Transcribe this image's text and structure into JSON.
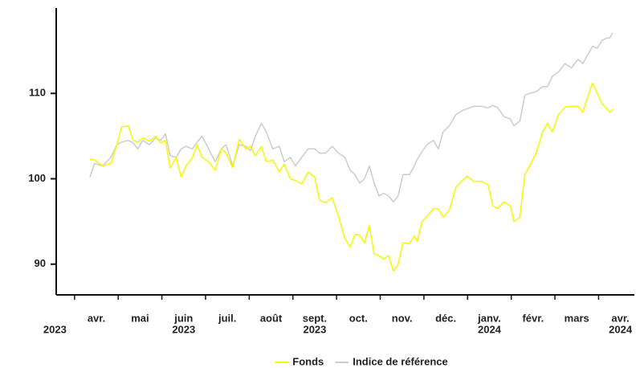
{
  "chart_data": {
    "type": "line",
    "x": [
      0.35,
      0.46,
      0.64,
      0.83,
      0.97,
      1.08,
      1.23,
      1.34,
      1.45,
      1.56,
      1.71,
      1.86,
      1.97,
      2.08,
      2.19,
      2.33,
      2.44,
      2.55,
      2.7,
      2.81,
      2.92,
      3.07,
      3.22,
      3.36,
      3.47,
      3.62,
      3.77,
      3.92,
      4.03,
      4.14,
      4.28,
      4.39,
      4.54,
      4.69,
      4.8,
      4.94,
      5.06,
      5.2,
      5.35,
      5.5,
      5.61,
      5.75,
      5.9,
      6.05,
      6.19,
      6.31,
      6.42,
      6.53,
      6.64,
      6.75,
      6.86,
      6.97,
      7.08,
      7.19,
      7.3,
      7.41,
      7.52,
      7.67,
      7.78,
      7.85,
      7.96,
      8.07,
      8.22,
      8.33,
      8.44,
      8.58,
      8.73,
      8.88,
      8.99,
      9.14,
      9.32,
      9.47,
      9.58,
      9.69,
      9.83,
      9.98,
      10.06,
      10.2,
      10.31,
      10.42,
      10.57,
      10.72,
      10.83,
      10.94,
      11.08,
      11.23,
      11.38,
      11.53,
      11.64,
      11.75,
      11.86,
      11.97,
      12.08,
      12.19,
      12.26,
      12.32
    ],
    "series": [
      {
        "name": "Fonds",
        "color": "#f7f700",
        "values": [
          102.3,
          102.2,
          101.5,
          101.8,
          104,
          106.1,
          106.2,
          104.5,
          104.3,
          104.8,
          104.4,
          105,
          104.2,
          104.5,
          101.3,
          102.5,
          100.2,
          101.5,
          102.5,
          104,
          102.5,
          102,
          101,
          103.5,
          103,
          101.3,
          104.6,
          103.5,
          103.8,
          102.7,
          103.8,
          102,
          102.2,
          100.8,
          101.7,
          100,
          99.8,
          99.4,
          100.8,
          100.2,
          97.5,
          97.2,
          97.8,
          95.5,
          93,
          92,
          93.5,
          93.4,
          92.5,
          94.5,
          91.2,
          91,
          90.6,
          91,
          89.2,
          90,
          92.5,
          92.4,
          93.3,
          92.7,
          95,
          95.6,
          96.5,
          96.5,
          95.5,
          96.3,
          99,
          99.8,
          100.3,
          99.7,
          99.7,
          99.3,
          96.8,
          96.5,
          97.3,
          96.8,
          95,
          95.5,
          100.5,
          101.5,
          103,
          105.5,
          106.5,
          105.5,
          107.5,
          108.4,
          108.5,
          108.5,
          107.8,
          109.6,
          111.2,
          110,
          108.8,
          108.2,
          107.8,
          108.1
        ]
      },
      {
        "name": "Indice de référence",
        "color": "#cccccc",
        "values": [
          100.2,
          101.8,
          101.5,
          102.5,
          104,
          104.3,
          104.5,
          104.2,
          103.5,
          104.5,
          104,
          104.8,
          104.5,
          105.3,
          102.7,
          102.5,
          103.5,
          103.8,
          103.5,
          104.3,
          105,
          103.5,
          102,
          103.5,
          104,
          101.5,
          104,
          103.8,
          103.3,
          105,
          106.5,
          105.5,
          103.5,
          103.8,
          102,
          102.5,
          101.5,
          102.5,
          103.5,
          103.5,
          103,
          103,
          103.8,
          103,
          102.5,
          101,
          100.5,
          99.5,
          100,
          101.5,
          99.5,
          98,
          98.3,
          98,
          97.3,
          98,
          100.5,
          100.5,
          101.5,
          102.3,
          103.2,
          104,
          104.5,
          103.5,
          105.5,
          106.2,
          107.5,
          108,
          108.2,
          108.5,
          108.5,
          108.3,
          108.6,
          108.3,
          107.3,
          107,
          106.2,
          106.8,
          109.8,
          110,
          110.2,
          110.8,
          110.8,
          112,
          112.5,
          113.5,
          113,
          114,
          113.5,
          114.5,
          115.5,
          115.3,
          116.2,
          116.5,
          116.5,
          117.1
        ]
      }
    ],
    "xlim": [
      -0.42,
      12.82
    ],
    "xticks": [
      0,
      1,
      2,
      3,
      4,
      5,
      6,
      7,
      8,
      9,
      10,
      11,
      12
    ],
    "xlabels": [
      {
        "value": 0.5,
        "label": "avr."
      },
      {
        "value": 1.5,
        "label": "mai"
      },
      {
        "value": 2.5,
        "label": "juin"
      },
      {
        "value": 3.5,
        "label": "juil."
      },
      {
        "value": 4.5,
        "label": "août"
      },
      {
        "value": 5.5,
        "label": "sept."
      },
      {
        "value": 6.5,
        "label": "oct."
      },
      {
        "value": 7.5,
        "label": "nov."
      },
      {
        "value": 8.5,
        "label": "déc."
      },
      {
        "value": 9.5,
        "label": "janv."
      },
      {
        "value": 10.5,
        "label": "févr."
      },
      {
        "value": 11.5,
        "label": "mars"
      },
      {
        "value": 12.5,
        "label": "avr."
      }
    ],
    "xyearlabels": [
      {
        "value": -0.45,
        "label": "2023"
      },
      {
        "value": 2.5,
        "label": "2023"
      },
      {
        "value": 5.5,
        "label": "2023"
      },
      {
        "value": 9.5,
        "label": "2024"
      },
      {
        "value": 12.5,
        "label": "2024"
      }
    ],
    "ylim": [
      86.4,
      120
    ],
    "yticks": [
      90,
      100,
      110
    ],
    "grid": false,
    "legend": "bottom"
  }
}
